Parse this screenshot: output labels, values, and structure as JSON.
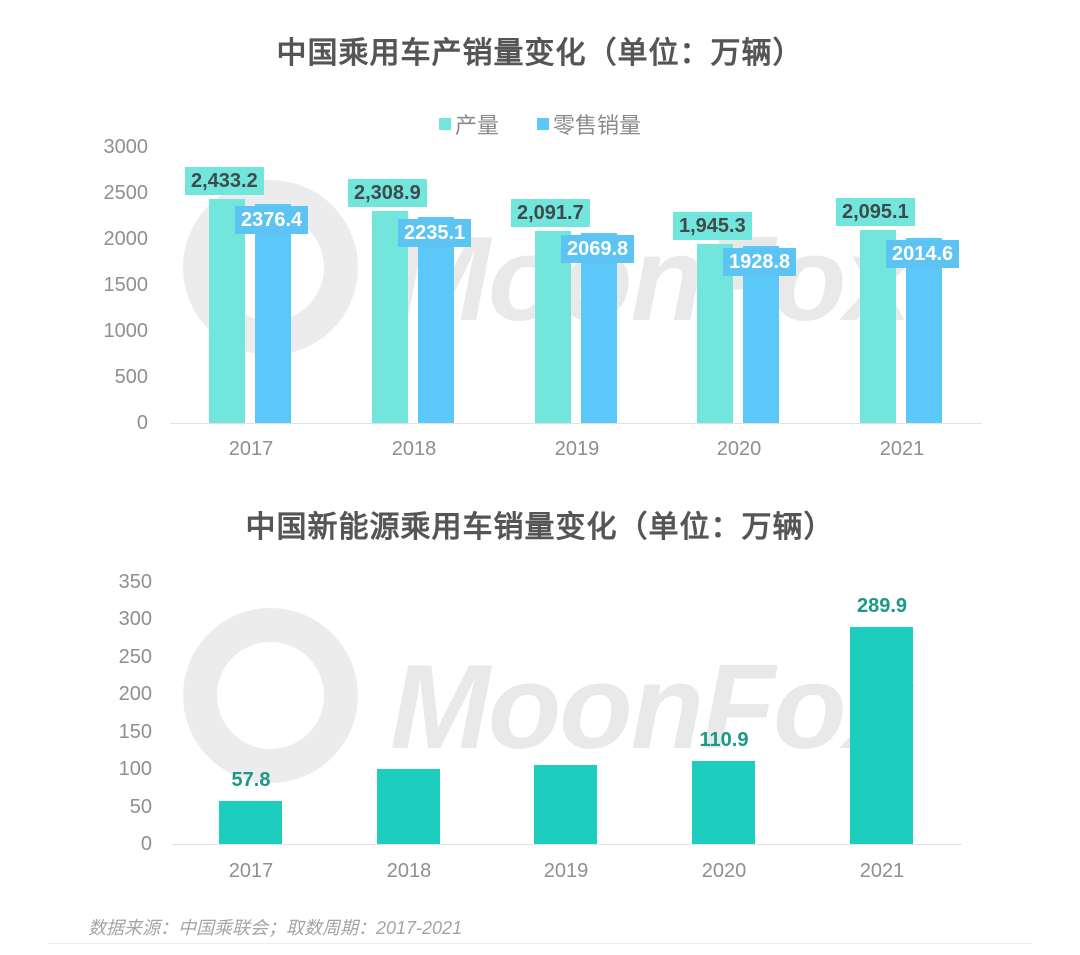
{
  "chart_data": [
    {
      "type": "bar",
      "title": "中国乘用车产销量变化（单位：万辆）",
      "categories": [
        "2017",
        "2018",
        "2019",
        "2020",
        "2021"
      ],
      "series": [
        {
          "name": "产量",
          "color": "#72e6dd",
          "values": [
            2433.2,
            2308.9,
            2091.7,
            1945.3,
            2095.1
          ],
          "labels": [
            "2,433.2",
            "2,308.9",
            "2,091.7",
            "1,945.3",
            "2,095.1"
          ]
        },
        {
          "name": "零售销量",
          "color": "#5cc8fa",
          "values": [
            2376.4,
            2235.1,
            2069.8,
            1928.8,
            2014.6
          ],
          "labels": [
            "2376.4",
            "2235.1",
            "2069.8",
            "1928.8",
            "2014.6"
          ]
        }
      ],
      "xlabel": "",
      "ylabel": "",
      "ylim": [
        0,
        3000
      ],
      "yticks": [
        "3000",
        "2500",
        "2000",
        "1500",
        "1000",
        "500",
        "0"
      ],
      "legend_position": "top",
      "grid": false
    },
    {
      "type": "bar",
      "title": "中国新能源乘用车销量变化（单位：万辆）",
      "categories": [
        "2017",
        "2018",
        "2019",
        "2020",
        "2021"
      ],
      "series": [
        {
          "name": "新能源乘用车销量",
          "color": "#1dcdbd",
          "values": [
            57.8,
            100,
            105,
            110.9,
            289.9
          ],
          "labels": [
            "57.8",
            "",
            "",
            "110.9",
            "289.9"
          ]
        }
      ],
      "xlabel": "",
      "ylabel": "",
      "ylim": [
        0,
        350
      ],
      "yticks": [
        "350",
        "300",
        "250",
        "200",
        "150",
        "100",
        "50",
        "0"
      ],
      "grid": false
    }
  ],
  "chart1": {
    "title": "中国乘用车产销量变化（单位：万辆）",
    "legend": [
      "产量",
      "零售销量"
    ]
  },
  "chart2": {
    "title": "中国新能源乘用车销量变化（单位：万辆）"
  },
  "watermark": "MoonFox",
  "footer": {
    "source": "数据来源：中国乘联会；取数周期：2017-2021"
  }
}
